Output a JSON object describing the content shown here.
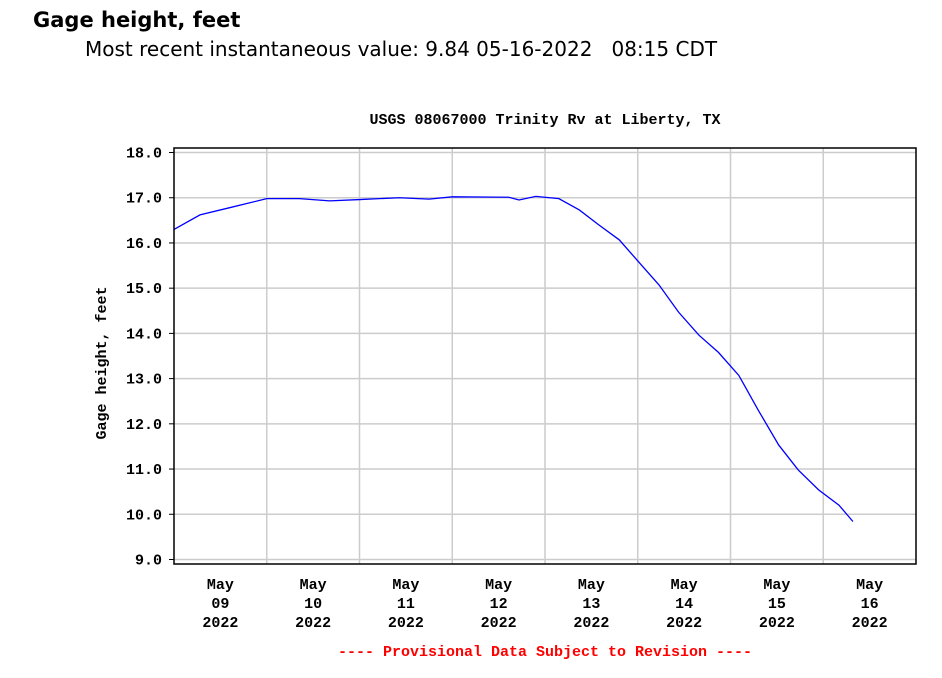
{
  "header": {
    "title": "Gage height, feet",
    "subtitle": "Most recent instantaneous value: 9.84 05-16-2022   08:15 CDT"
  },
  "chart_data": {
    "type": "line",
    "title": "USGS 08067000 Trinity Rv at Liberty, TX",
    "y_label": "Gage height, feet",
    "footer": "---- Provisional Data Subject to Revision ----",
    "x": [
      9.0,
      9.28,
      9.6,
      10.0,
      10.35,
      10.68,
      11.0,
      11.43,
      11.75,
      12.0,
      12.61,
      12.72,
      12.9,
      13.15,
      13.37,
      13.58,
      13.8,
      14.01,
      14.23,
      14.44,
      14.66,
      14.87,
      15.09,
      15.3,
      15.52,
      15.73,
      15.95,
      16.17,
      16.32
    ],
    "series": [
      {
        "name": "Gage height",
        "color": "#0000ff",
        "values": [
          16.3,
          16.62,
          16.78,
          16.98,
          16.98,
          16.93,
          16.96,
          17.0,
          16.97,
          17.02,
          17.01,
          16.95,
          17.03,
          16.98,
          16.73,
          16.4,
          16.07,
          15.58,
          15.07,
          14.47,
          13.96,
          13.58,
          13.07,
          12.3,
          11.53,
          10.98,
          10.54,
          10.2,
          9.84
        ]
      }
    ],
    "xlim": [
      9,
      17
    ],
    "xticks": [
      {
        "value": 9.5,
        "label": "May\n09\n2022"
      },
      {
        "value": 10.5,
        "label": "May\n10\n2022"
      },
      {
        "value": 11.5,
        "label": "May\n11\n2022"
      },
      {
        "value": 12.5,
        "label": "May\n12\n2022"
      },
      {
        "value": 13.5,
        "label": "May\n13\n2022"
      },
      {
        "value": 14.5,
        "label": "May\n14\n2022"
      },
      {
        "value": 15.5,
        "label": "May\n15\n2022"
      },
      {
        "value": 16.5,
        "label": "May\n16\n2022"
      }
    ],
    "xgrid": [
      10,
      11,
      12,
      13,
      14,
      15,
      16
    ],
    "ylim": [
      8.9,
      18.1
    ],
    "yticks": [
      {
        "value": 9,
        "label": "9.0"
      },
      {
        "value": 10,
        "label": "10.0"
      },
      {
        "value": 11,
        "label": "11.0"
      },
      {
        "value": 12,
        "label": "12.0"
      },
      {
        "value": 13,
        "label": "13.0"
      },
      {
        "value": 14,
        "label": "14.0"
      },
      {
        "value": 15,
        "label": "15.0"
      },
      {
        "value": 16,
        "label": "16.0"
      },
      {
        "value": 17,
        "label": "17.0"
      },
      {
        "value": 18,
        "label": "18.0"
      }
    ],
    "grid": true
  }
}
